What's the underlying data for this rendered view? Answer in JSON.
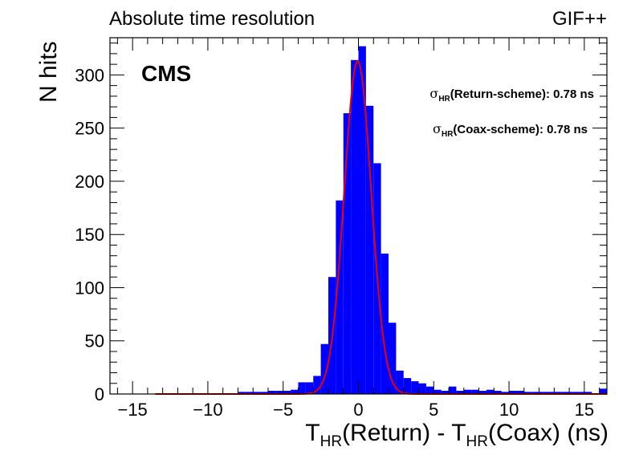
{
  "header": {
    "title": "Absolute time resolution",
    "corner": "GIF++"
  },
  "experiment_label": "CMS",
  "annotations": {
    "sigma_symbol": "σ",
    "sigma_sub": "HR",
    "return_text": "(Return-scheme): 0.78 ns",
    "coax_text": "(Coax-scheme): 0.78 ns"
  },
  "axes": {
    "xlabel": {
      "t1": "T",
      "s1": "HR",
      "mid": "(Return) - T",
      "s2": "HR",
      "end": "(Coax) (ns)"
    },
    "ylabel": "N hits"
  },
  "colors": {
    "histogram": "#0000ff",
    "fit": "#ee0000",
    "frame": "#000000"
  },
  "chart_data": {
    "type": "bar",
    "title": "Absolute time resolution",
    "xlim": [
      -16.5,
      16.5
    ],
    "ylim": [
      0,
      335
    ],
    "bin_width": 0.5,
    "x_ticks": [
      -15,
      -10,
      -5,
      0,
      5,
      10,
      15
    ],
    "x_tick_labels": [
      "−15",
      "−10",
      "−5",
      "0",
      "5",
      "10",
      "15"
    ],
    "y_ticks": [
      0,
      50,
      100,
      150,
      200,
      250,
      300
    ],
    "y_tick_labels": [
      "0",
      "50",
      "100",
      "150",
      "200",
      "250",
      "300"
    ],
    "bins": [
      {
        "lo": -8.0,
        "count": 2
      },
      {
        "lo": -7.5,
        "count": 2
      },
      {
        "lo": -7.0,
        "count": 2
      },
      {
        "lo": -6.5,
        "count": 2
      },
      {
        "lo": -6.0,
        "count": 3
      },
      {
        "lo": -5.5,
        "count": 3
      },
      {
        "lo": -5.0,
        "count": 3
      },
      {
        "lo": -4.5,
        "count": 4
      },
      {
        "lo": -4.0,
        "count": 11
      },
      {
        "lo": -3.5,
        "count": 11
      },
      {
        "lo": -3.0,
        "count": 17
      },
      {
        "lo": -2.5,
        "count": 47
      },
      {
        "lo": -2.0,
        "count": 110
      },
      {
        "lo": -1.5,
        "count": 182
      },
      {
        "lo": -1.0,
        "count": 264
      },
      {
        "lo": -0.5,
        "count": 314
      },
      {
        "lo": 0.0,
        "count": 327
      },
      {
        "lo": 0.5,
        "count": 271
      },
      {
        "lo": 1.0,
        "count": 217
      },
      {
        "lo": 1.5,
        "count": 132
      },
      {
        "lo": 2.0,
        "count": 67
      },
      {
        "lo": 2.5,
        "count": 22
      },
      {
        "lo": 3.0,
        "count": 15
      },
      {
        "lo": 3.5,
        "count": 12
      },
      {
        "lo": 4.0,
        "count": 10
      },
      {
        "lo": 4.5,
        "count": 7
      },
      {
        "lo": 5.0,
        "count": 4
      },
      {
        "lo": 5.5,
        "count": 3
      },
      {
        "lo": 6.0,
        "count": 7
      },
      {
        "lo": 6.5,
        "count": 3
      },
      {
        "lo": 7.0,
        "count": 4
      },
      {
        "lo": 7.5,
        "count": 4
      },
      {
        "lo": 8.0,
        "count": 3
      },
      {
        "lo": 8.5,
        "count": 4
      },
      {
        "lo": 9.0,
        "count": 3
      },
      {
        "lo": 9.5,
        "count": 2
      },
      {
        "lo": 10.0,
        "count": 3
      },
      {
        "lo": 10.5,
        "count": 3
      },
      {
        "lo": 11.0,
        "count": 2
      },
      {
        "lo": 11.5,
        "count": 2
      },
      {
        "lo": 12.0,
        "count": 2
      },
      {
        "lo": 12.5,
        "count": 2
      },
      {
        "lo": 13.0,
        "count": 2
      },
      {
        "lo": 13.5,
        "count": 2
      },
      {
        "lo": 14.0,
        "count": 2
      },
      {
        "lo": 14.5,
        "count": 2
      },
      {
        "lo": 15.0,
        "count": 2
      },
      {
        "lo": 16.0,
        "count": 5
      }
    ],
    "fit": {
      "shape": "gaussian",
      "amplitude": 313,
      "mean": -0.05,
      "sigma": 0.9,
      "x_range": [
        -13.5,
        16.5
      ]
    }
  }
}
